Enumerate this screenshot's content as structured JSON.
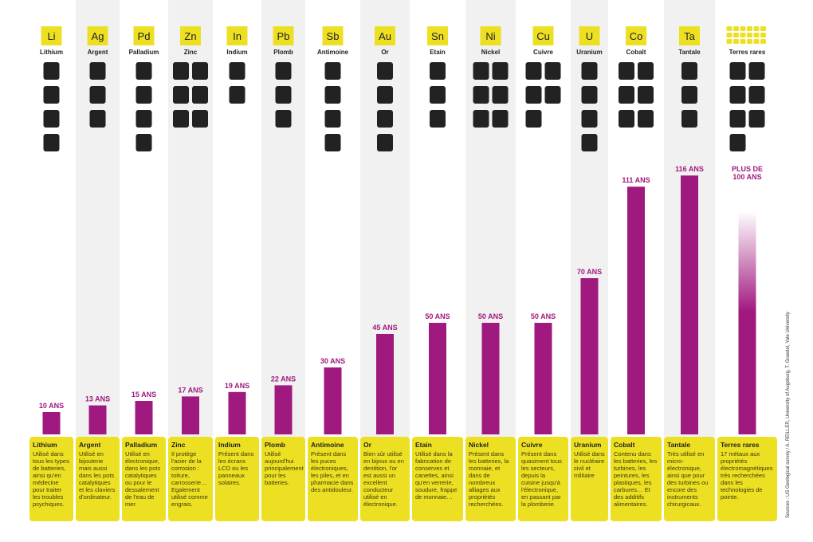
{
  "chart_data": {
    "type": "bar",
    "color": "#a0197f",
    "symbols": [
      "Li",
      "Ag",
      "Pd",
      "Zn",
      "In",
      "Pb",
      "Sb",
      "Au",
      "Sn",
      "Ni",
      "Cu",
      "U",
      "Co",
      "Ta",
      null
    ],
    "categories": [
      "Lithium",
      "Argent",
      "Palladium",
      "Zinc",
      "Indium",
      "Plomb",
      "Antimoine",
      "Or",
      "Etain",
      "Nickel",
      "Cuivre",
      "Uranium",
      "Cobalt",
      "Tantale",
      "Terres rares"
    ],
    "values": [
      10,
      13,
      15,
      17,
      19,
      22,
      30,
      45,
      50,
      50,
      50,
      70,
      111,
      116,
      100
    ],
    "value_labels": [
      "10 ANS",
      "13 ANS",
      "15 ANS",
      "17 ANS",
      "19 ANS",
      "22 ANS",
      "30 ANS",
      "45 ANS",
      "50 ANS",
      "50 ANS",
      "50 ANS",
      "70 ANS",
      "111 ANS",
      "116 ANS",
      "PLUS DE 100 ANS"
    ],
    "descriptions": [
      "Utilisé dans tous les types de batteries, ainsi qu'en médecine pour traiter les troubles psychiques.",
      "Utilisé en bijouterie mais aussi dans les pots catalytiques et les claviers d'ordinateur.",
      "Utilisé en électronique, dans les pots catalytiques ou pour le dessalement de l'eau de mer.",
      "Il protège l'acier de la corrosion : toiture, carrosserie… Egalement utilisé comme engrais.",
      "Présent dans les écrans LCD ou les panneaux solaires.",
      "Utilisé aujourd'hui principalement pour les batteries.",
      "Présent dans les puces électroniques, les piles, et en pharmacie dans des antidouleur.",
      "Bien sûr utilisé en bijoux ou en dentition, l'or est aussi un excellent conducteur utilisé en électronique.",
      "Utilisé dans la fabrication de conserves et canettes, ainsi qu'en verrerie, soudure, frappe de monnaie…",
      "Présent dans les batteries, la monnaie, et dans de nombreux alliages aux propriétés recherchées.",
      "Présent dans quasiment tous les secteurs, depuis la cuisine jusqu'à l'électronique, en passant par la plomberie.",
      "Utilisé dans le nucléaire civil et militaire",
      "Contenu dans les batteries, les turbines, les peintures, les plastiques, les carbures… Et des additifs alimentaires.",
      "Très utilisé en micro-électronique, ainsi que pour des turbines ou encore des instruments chirurgicaux.",
      "17 métaux aux propriétés électromagnétiques très recherchées dans les technologies de pointe."
    ],
    "source": "Sources : US Geological survey / A. REILLER, University of Augsburg, T. Graedel, Yale University"
  }
}
